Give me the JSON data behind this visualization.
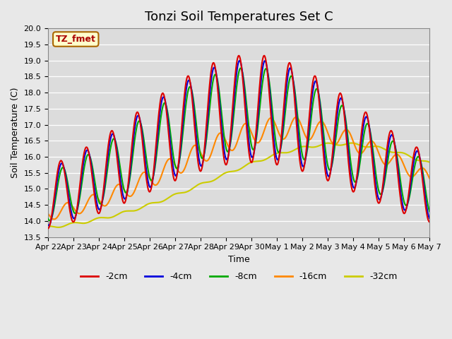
{
  "title": "Tonzi Soil Temperatures Set C",
  "xlabel": "Time",
  "ylabel": "Soil Temperature (C)",
  "ylim": [
    13.5,
    20.0
  ],
  "label_box": "TZ_fmet",
  "x_tick_labels": [
    "Apr 22",
    "Apr 23",
    "Apr 24",
    "Apr 25",
    "Apr 26",
    "Apr 27",
    "Apr 28",
    "Apr 29",
    "Apr 30",
    "May 1",
    "May 2",
    "May 3",
    "May 4",
    "May 5",
    "May 6",
    "May 7"
  ],
  "series_order": [
    "-2cm",
    "-4cm",
    "-8cm",
    "-16cm",
    "-32cm"
  ],
  "series": {
    "-2cm": {
      "color": "#DD0000",
      "linewidth": 1.5
    },
    "-4cm": {
      "color": "#0000DD",
      "linewidth": 1.5
    },
    "-8cm": {
      "color": "#00AA00",
      "linewidth": 1.5
    },
    "-16cm": {
      "color": "#FF8800",
      "linewidth": 1.5
    },
    "-32cm": {
      "color": "#CCCC00",
      "linewidth": 1.5
    }
  },
  "background_color": "#E8E8E8",
  "plot_bg_color": "#DCDCDC",
  "grid_color": "#FFFFFF",
  "title_fontsize": 13,
  "axis_fontsize": 9,
  "tick_fontsize": 8
}
